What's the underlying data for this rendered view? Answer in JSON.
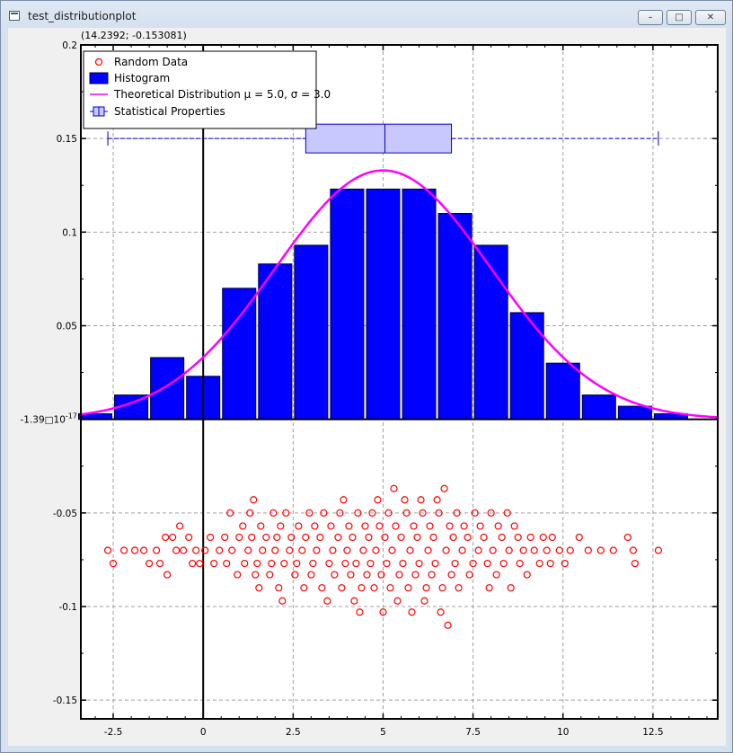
{
  "window": {
    "title": "test_distributionplot",
    "minimize_glyph": "–",
    "maximize_glyph": "□",
    "close_glyph": "✕",
    "icon": "app-window-icon"
  },
  "coordinate_readout": "(14.2392; -0.153081)",
  "chart_data": {
    "type": "bar",
    "xlim": [
      -3.4,
      14.3
    ],
    "ylim": [
      -0.16,
      0.2
    ],
    "x_ticks": [
      -2.5,
      0,
      2.5,
      5,
      7.5,
      10,
      12.5
    ],
    "x_tick_labels": [
      "-2.5",
      "0",
      "2.5",
      "5",
      "7.5",
      "10",
      "12.5"
    ],
    "y_ticks": [
      -0.15,
      -0.1,
      -0.05,
      0,
      0.05,
      0.1,
      0.15,
      0.2
    ],
    "y_tick_labels": [
      "-0.15",
      "-0.1",
      "-0.05",
      "-1.39□10",
      "0.05",
      "0.1",
      "0.15",
      "0.2"
    ],
    "y_zero_label_exponent": "-17",
    "grid": true,
    "legend_position": "top-left",
    "legend": [
      {
        "label": "Random Data",
        "symbol": "circle",
        "color": "#ff0000"
      },
      {
        "label": "Histogram",
        "symbol": "box",
        "color": "#0000ff"
      },
      {
        "label": "Theoretical Distribution μ = 5.0, σ = 3.0",
        "symbol": "line",
        "color": "#ff00ff"
      },
      {
        "label": "Statistical Properties",
        "symbol": "boxplot",
        "color": "#0000cc"
      }
    ],
    "histogram": {
      "name": "Histogram",
      "color": "#0000ff",
      "bin_width": 1.0,
      "bin_centers": [
        -3.0,
        -2.0,
        -1.0,
        0.0,
        1.0,
        2.0,
        3.0,
        4.0,
        5.0,
        6.0,
        7.0,
        8.0,
        9.0,
        10.0,
        11.0,
        12.0,
        13.0
      ],
      "values": [
        0.003,
        0.013,
        0.033,
        0.023,
        0.07,
        0.083,
        0.093,
        0.123,
        0.123,
        0.123,
        0.11,
        0.093,
        0.057,
        0.03,
        0.013,
        0.007,
        0.003
      ]
    },
    "theoretical_distribution": {
      "name": "Theoretical Distribution μ = 5.0, σ = 3.0",
      "mu": 5.0,
      "sigma": 3.0,
      "color": "#ff00ff"
    },
    "statistical_properties": {
      "name": "Statistical Properties",
      "y": 0.15,
      "min": -2.65,
      "q1": 2.85,
      "median": 5.05,
      "q3": 6.9,
      "max": 12.65,
      "color": "#0000cc",
      "fill": "#c8c8ff"
    },
    "random_data": {
      "name": "Random Data",
      "color": "#ff0000",
      "points": [
        [
          -2.65,
          -0.07
        ],
        [
          -2.5,
          -0.077
        ],
        [
          -2.2,
          -0.07
        ],
        [
          -1.9,
          -0.07
        ],
        [
          -1.65,
          -0.07
        ],
        [
          -1.5,
          -0.077
        ],
        [
          -1.3,
          -0.07
        ],
        [
          -1.2,
          -0.077
        ],
        [
          -1.05,
          -0.063
        ],
        [
          -1.0,
          -0.083
        ],
        [
          -0.85,
          -0.063
        ],
        [
          -0.75,
          -0.07
        ],
        [
          -0.65,
          -0.057
        ],
        [
          -0.55,
          -0.07
        ],
        [
          -0.4,
          -0.063
        ],
        [
          -0.3,
          -0.077
        ],
        [
          -0.2,
          -0.07
        ],
        [
          -0.1,
          -0.077
        ],
        [
          0.05,
          -0.07
        ],
        [
          0.2,
          -0.063
        ],
        [
          0.3,
          -0.077
        ],
        [
          0.45,
          -0.07
        ],
        [
          0.6,
          -0.063
        ],
        [
          0.65,
          -0.077
        ],
        [
          0.75,
          -0.05
        ],
        [
          0.8,
          -0.07
        ],
        [
          0.95,
          -0.083
        ],
        [
          1.0,
          -0.063
        ],
        [
          1.1,
          -0.057
        ],
        [
          1.15,
          -0.077
        ],
        [
          1.25,
          -0.07
        ],
        [
          1.3,
          -0.05
        ],
        [
          1.35,
          -0.063
        ],
        [
          1.4,
          -0.043
        ],
        [
          1.45,
          -0.083
        ],
        [
          1.5,
          -0.077
        ],
        [
          1.55,
          -0.09
        ],
        [
          1.6,
          -0.057
        ],
        [
          1.65,
          -0.07
        ],
        [
          1.75,
          -0.063
        ],
        [
          1.85,
          -0.083
        ],
        [
          1.9,
          -0.077
        ],
        [
          1.95,
          -0.05
        ],
        [
          2.0,
          -0.07
        ],
        [
          2.05,
          -0.063
        ],
        [
          2.1,
          -0.09
        ],
        [
          2.15,
          -0.057
        ],
        [
          2.2,
          -0.097
        ],
        [
          2.25,
          -0.077
        ],
        [
          2.3,
          -0.05
        ],
        [
          2.4,
          -0.07
        ],
        [
          2.45,
          -0.063
        ],
        [
          2.55,
          -0.083
        ],
        [
          2.6,
          -0.077
        ],
        [
          2.65,
          -0.057
        ],
        [
          2.75,
          -0.07
        ],
        [
          2.8,
          -0.09
        ],
        [
          2.85,
          -0.063
        ],
        [
          2.95,
          -0.05
        ],
        [
          3.0,
          -0.083
        ],
        [
          3.05,
          -0.077
        ],
        [
          3.1,
          -0.057
        ],
        [
          3.15,
          -0.07
        ],
        [
          3.25,
          -0.063
        ],
        [
          3.3,
          -0.09
        ],
        [
          3.35,
          -0.05
        ],
        [
          3.45,
          -0.097
        ],
        [
          3.5,
          -0.077
        ],
        [
          3.55,
          -0.057
        ],
        [
          3.6,
          -0.07
        ],
        [
          3.65,
          -0.083
        ],
        [
          3.75,
          -0.063
        ],
        [
          3.8,
          -0.05
        ],
        [
          3.85,
          -0.09
        ],
        [
          3.9,
          -0.043
        ],
        [
          3.95,
          -0.077
        ],
        [
          4.0,
          -0.07
        ],
        [
          4.05,
          -0.057
        ],
        [
          4.1,
          -0.083
        ],
        [
          4.15,
          -0.063
        ],
        [
          4.2,
          -0.097
        ],
        [
          4.25,
          -0.077
        ],
        [
          4.3,
          -0.05
        ],
        [
          4.35,
          -0.103
        ],
        [
          4.4,
          -0.09
        ],
        [
          4.45,
          -0.07
        ],
        [
          4.5,
          -0.057
        ],
        [
          4.55,
          -0.083
        ],
        [
          4.6,
          -0.063
        ],
        [
          4.65,
          -0.077
        ],
        [
          4.7,
          -0.05
        ],
        [
          4.75,
          -0.09
        ],
        [
          4.8,
          -0.07
        ],
        [
          4.85,
          -0.043
        ],
        [
          4.9,
          -0.057
        ],
        [
          4.95,
          -0.083
        ],
        [
          5.0,
          -0.103
        ],
        [
          5.05,
          -0.063
        ],
        [
          5.1,
          -0.077
        ],
        [
          5.15,
          -0.05
        ],
        [
          5.2,
          -0.09
        ],
        [
          5.25,
          -0.07
        ],
        [
          5.3,
          -0.037
        ],
        [
          5.35,
          -0.057
        ],
        [
          5.4,
          -0.097
        ],
        [
          5.45,
          -0.083
        ],
        [
          5.5,
          -0.063
        ],
        [
          5.55,
          -0.077
        ],
        [
          5.6,
          -0.043
        ],
        [
          5.65,
          -0.05
        ],
        [
          5.7,
          -0.09
        ],
        [
          5.75,
          -0.07
        ],
        [
          5.8,
          -0.103
        ],
        [
          5.85,
          -0.057
        ],
        [
          5.9,
          -0.083
        ],
        [
          5.95,
          -0.063
        ],
        [
          6.0,
          -0.077
        ],
        [
          6.05,
          -0.043
        ],
        [
          6.1,
          -0.05
        ],
        [
          6.15,
          -0.097
        ],
        [
          6.2,
          -0.09
        ],
        [
          6.25,
          -0.07
        ],
        [
          6.3,
          -0.057
        ],
        [
          6.35,
          -0.083
        ],
        [
          6.4,
          -0.063
        ],
        [
          6.45,
          -0.077
        ],
        [
          6.5,
          -0.043
        ],
        [
          6.55,
          -0.05
        ],
        [
          6.6,
          -0.103
        ],
        [
          6.65,
          -0.09
        ],
        [
          6.7,
          -0.037
        ],
        [
          6.75,
          -0.07
        ],
        [
          6.8,
          -0.11
        ],
        [
          6.85,
          -0.057
        ],
        [
          6.9,
          -0.083
        ],
        [
          6.95,
          -0.063
        ],
        [
          7.0,
          -0.077
        ],
        [
          7.05,
          -0.05
        ],
        [
          7.1,
          -0.09
        ],
        [
          7.2,
          -0.07
        ],
        [
          7.25,
          -0.057
        ],
        [
          7.35,
          -0.063
        ],
        [
          7.4,
          -0.083
        ],
        [
          7.5,
          -0.077
        ],
        [
          7.55,
          -0.05
        ],
        [
          7.65,
          -0.07
        ],
        [
          7.7,
          -0.057
        ],
        [
          7.8,
          -0.063
        ],
        [
          7.9,
          -0.077
        ],
        [
          7.95,
          -0.09
        ],
        [
          8.0,
          -0.05
        ],
        [
          8.05,
          -0.07
        ],
        [
          8.15,
          -0.083
        ],
        [
          8.2,
          -0.057
        ],
        [
          8.3,
          -0.063
        ],
        [
          8.35,
          -0.077
        ],
        [
          8.45,
          -0.05
        ],
        [
          8.5,
          -0.07
        ],
        [
          8.55,
          -0.09
        ],
        [
          8.65,
          -0.057
        ],
        [
          8.75,
          -0.063
        ],
        [
          8.8,
          -0.077
        ],
        [
          8.9,
          -0.07
        ],
        [
          9.0,
          -0.083
        ],
        [
          9.1,
          -0.063
        ],
        [
          9.2,
          -0.07
        ],
        [
          9.35,
          -0.077
        ],
        [
          9.45,
          -0.063
        ],
        [
          9.55,
          -0.07
        ],
        [
          9.65,
          -0.077
        ],
        [
          9.7,
          -0.063
        ],
        [
          9.9,
          -0.07
        ],
        [
          10.05,
          -0.077
        ],
        [
          10.2,
          -0.07
        ],
        [
          10.45,
          -0.063
        ],
        [
          10.7,
          -0.07
        ],
        [
          11.05,
          -0.07
        ],
        [
          11.4,
          -0.07
        ],
        [
          11.8,
          -0.063
        ],
        [
          11.95,
          -0.07
        ],
        [
          12.0,
          -0.077
        ],
        [
          12.65,
          -0.07
        ]
      ]
    }
  }
}
